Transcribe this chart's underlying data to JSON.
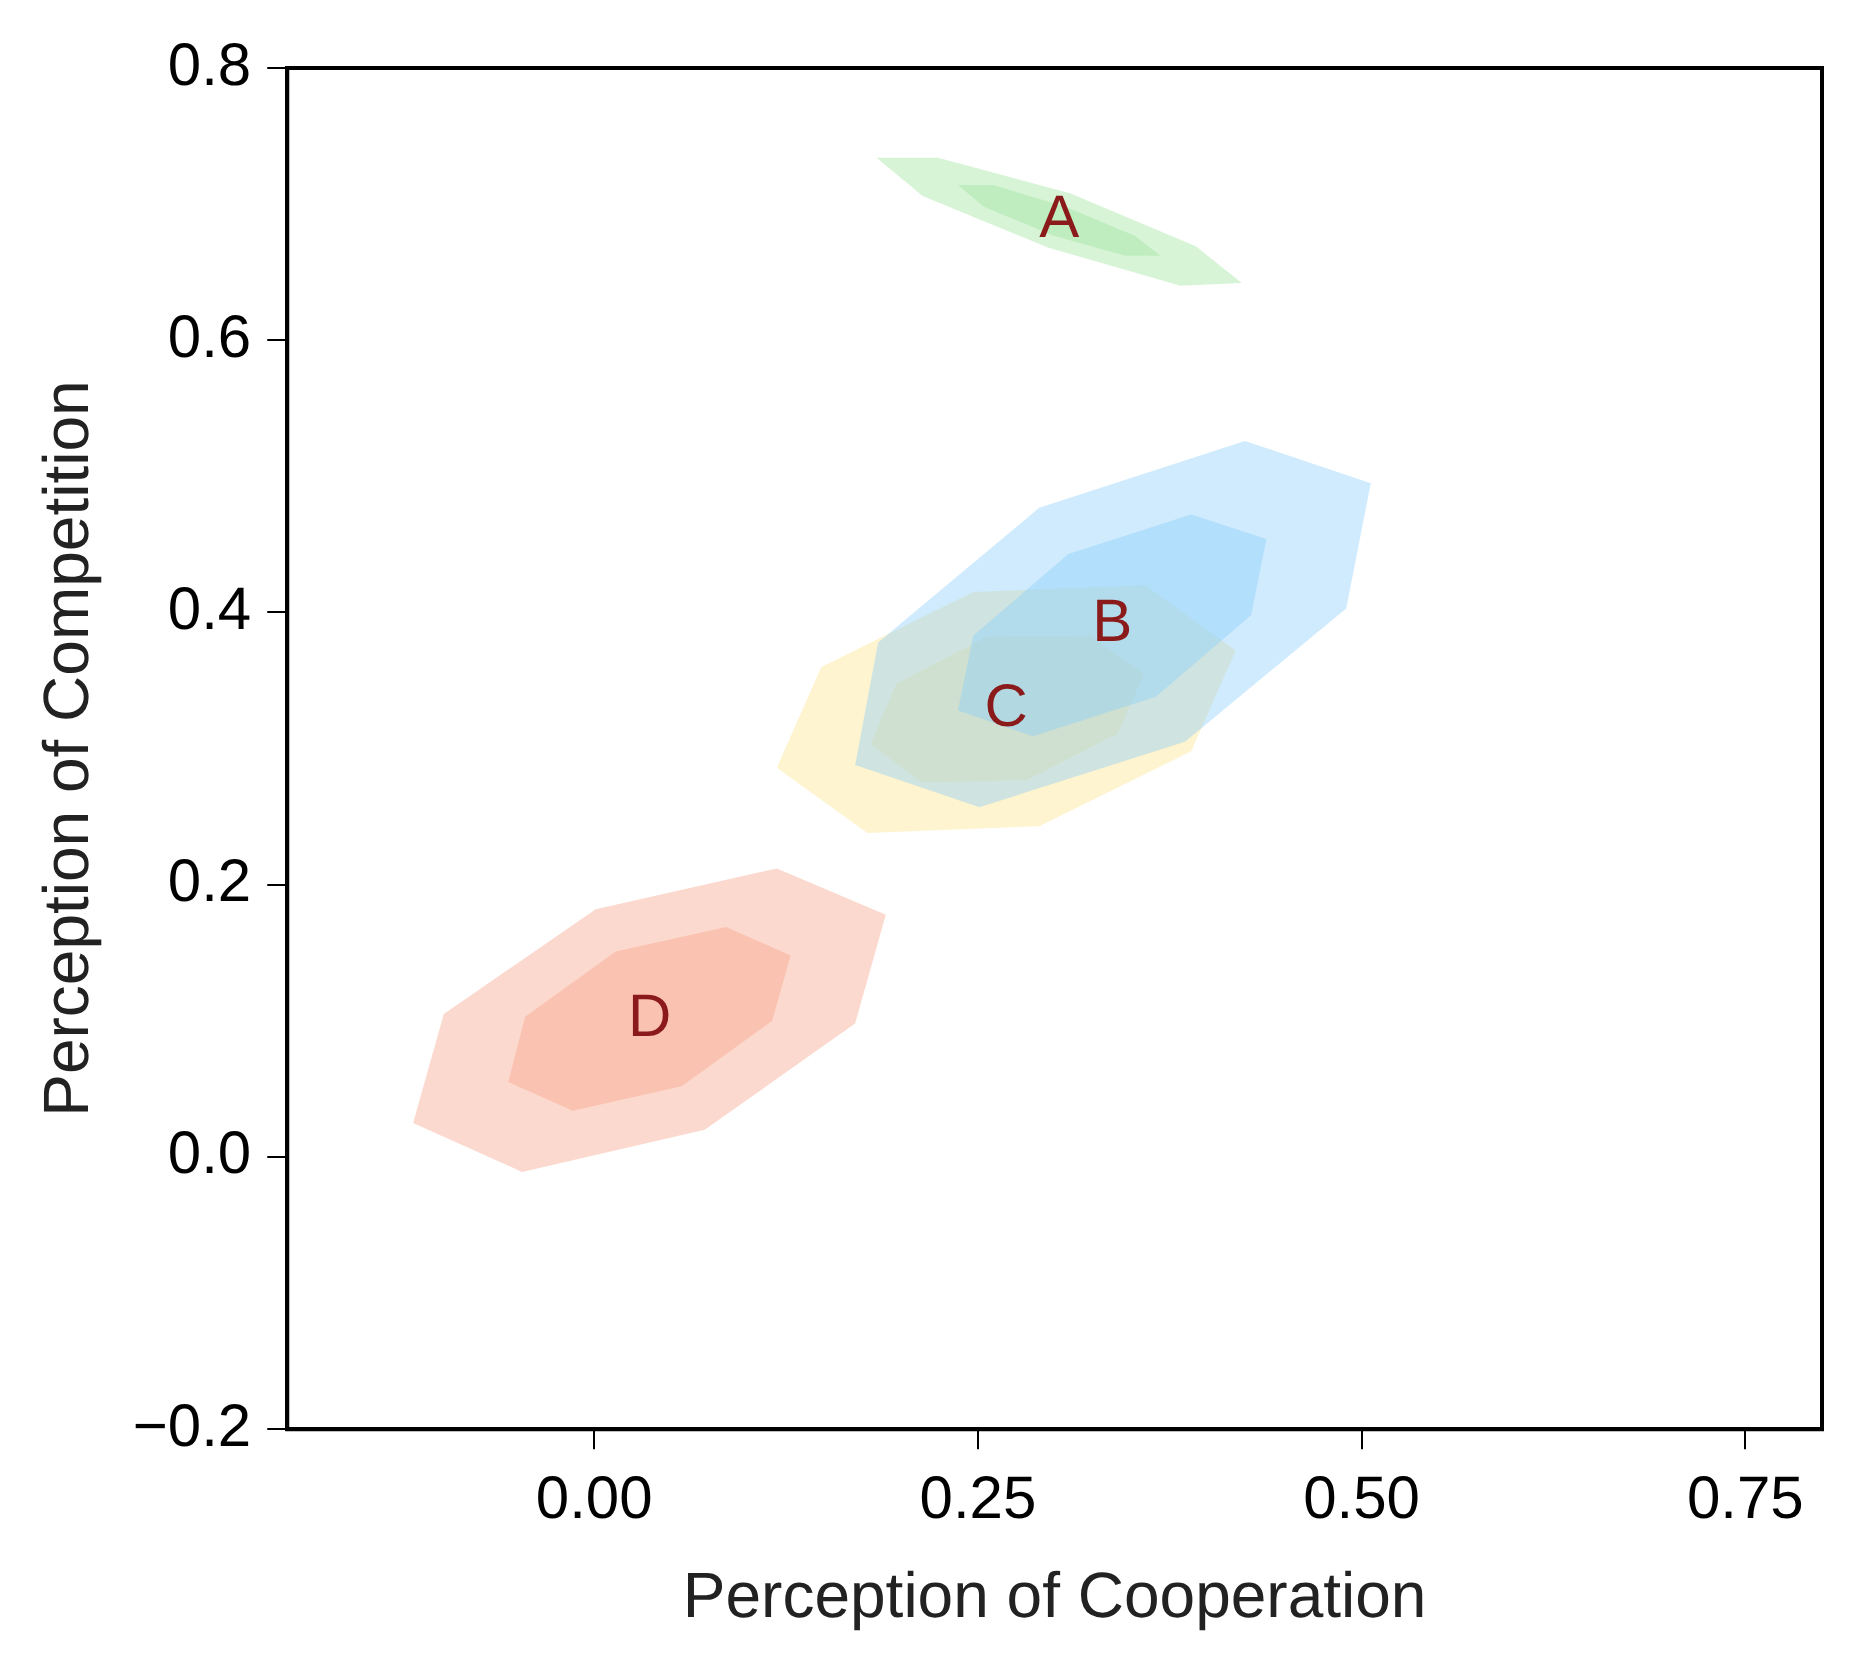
{
  "chart_data": {
    "type": "area",
    "xlabel": "Perception of Cooperation",
    "ylabel": "Perception of Competition",
    "xlim": [
      -0.2,
      0.8
    ],
    "ylim": [
      -0.2,
      0.8
    ],
    "xticks": [
      {
        "value": 0,
        "label": "0.00"
      },
      {
        "value": 0.25,
        "label": "0.25"
      },
      {
        "value": 0.5,
        "label": "0.50"
      },
      {
        "value": 0.75,
        "label": "0.75"
      }
    ],
    "yticks": [
      {
        "value": -0.2,
        "label": "−0.2"
      },
      {
        "value": 0,
        "label": "0.0"
      },
      0.2,
      0.4,
      0.6,
      0.8
    ],
    "grid": false,
    "legend": false,
    "series": [
      {
        "name": "A",
        "color": "#9be39b",
        "x": [
          0.422,
          0.382,
          0.296,
          0.214,
          0.184,
          0.224,
          0.31,
          0.392
        ],
        "values": [
          0.642,
          0.64,
          0.668,
          0.706,
          0.734,
          0.734,
          0.708,
          0.669
        ]
      },
      {
        "color": "#9be39b",
        "x": [
          0.369,
          0.346,
          0.299,
          0.254,
          0.237,
          0.26,
          0.307,
          0.352
        ],
        "values": [
          0.662,
          0.662,
          0.677,
          0.698,
          0.714,
          0.714,
          0.698,
          0.677
        ]
      },
      {
        "name": "B",
        "color": "#87cefa",
        "x": [
          0.506,
          0.49,
          0.385,
          0.251,
          0.17,
          0.185,
          0.29,
          0.424
        ],
        "values": [
          0.495,
          0.403,
          0.305,
          0.257,
          0.288,
          0.378,
          0.477,
          0.526
        ]
      },
      {
        "color": "#87cefa",
        "x": [
          0.438,
          0.428,
          0.366,
          0.286,
          0.237,
          0.247,
          0.309,
          0.389
        ],
        "values": [
          0.454,
          0.398,
          0.338,
          0.309,
          0.328,
          0.383,
          0.443,
          0.472
        ]
      },
      {
        "name": "C",
        "color": "#ffe48a",
        "x": [
          0.418,
          0.389,
          0.29,
          0.178,
          0.119,
          0.148,
          0.247,
          0.359
        ],
        "values": [
          0.372,
          0.298,
          0.243,
          0.238,
          0.286,
          0.36,
          0.415,
          0.42
        ]
      },
      {
        "color": "#ffe48a",
        "x": [
          0.358,
          0.341,
          0.282,
          0.214,
          0.18,
          0.197,
          0.256,
          0.323
        ],
        "values": [
          0.355,
          0.311,
          0.277,
          0.275,
          0.303,
          0.348,
          0.382,
          0.383
        ]
      },
      {
        "name": "D",
        "color": "#f7a184",
        "x": [
          0.19,
          0.17,
          0.072,
          -0.047,
          -0.118,
          -0.098,
          0.001,
          0.119
        ],
        "values": [
          0.178,
          0.098,
          0.02,
          -0.011,
          0.025,
          0.105,
          0.182,
          0.212
        ]
      },
      {
        "color": "#f7a184",
        "x": [
          0.128,
          0.116,
          0.057,
          -0.014,
          -0.056,
          -0.045,
          0.014,
          0.086
        ],
        "values": [
          0.148,
          0.1,
          0.052,
          0.034,
          0.055,
          0.103,
          0.151,
          0.169
        ]
      }
    ]
  }
}
